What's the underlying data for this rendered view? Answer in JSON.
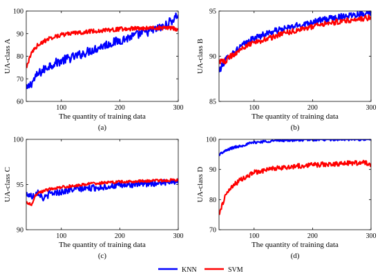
{
  "figure": {
    "legend": {
      "entries": [
        {
          "name": "KNN",
          "color": "#0000ff"
        },
        {
          "name": "SVM",
          "color": "#ff0000"
        }
      ]
    }
  },
  "chart_data": [
    {
      "type": "line",
      "caption": "(a)",
      "xlabel": "The quantity of training data",
      "ylabel": "UA-class A",
      "xlim": [
        40,
        300
      ],
      "ylim": [
        60,
        100
      ],
      "xticks": [
        100,
        200,
        300
      ],
      "yticks": [
        60,
        70,
        80,
        90,
        100
      ],
      "grid": false,
      "series": [
        {
          "name": "KNN",
          "color": "#0000ff",
          "noise": 2.0,
          "x": [
            40,
            60,
            80,
            100,
            125,
            150,
            175,
            200,
            225,
            250,
            275,
            290,
            300
          ],
          "y": [
            65,
            72,
            76,
            78,
            80,
            82.5,
            85,
            87,
            89,
            91,
            93,
            96,
            98.5
          ]
        },
        {
          "name": "SVM",
          "color": "#ff0000",
          "noise": 0.9,
          "x": [
            40,
            50,
            60,
            80,
            100,
            125,
            150,
            200,
            250,
            290,
            300
          ],
          "y": [
            75,
            82,
            85,
            88,
            89.5,
            90.3,
            91,
            92,
            92.5,
            92.5,
            91.5
          ]
        }
      ]
    },
    {
      "type": "line",
      "caption": "(b)",
      "xlabel": "The quantity of training data",
      "ylabel": "UA-class B",
      "xlim": [
        40,
        300
      ],
      "ylim": [
        85,
        95
      ],
      "xticks": [
        100,
        200,
        300
      ],
      "yticks": [
        85,
        90,
        95
      ],
      "grid": false,
      "series": [
        {
          "name": "KNN",
          "color": "#0000ff",
          "noise": 0.35,
          "x": [
            40,
            50,
            60,
            80,
            100,
            125,
            150,
            200,
            250,
            300
          ],
          "y": [
            88.3,
            89.5,
            90.2,
            91.2,
            92.0,
            92.6,
            93.0,
            93.8,
            94.4,
            94.9
          ]
        },
        {
          "name": "SVM",
          "color": "#ff0000",
          "noise": 0.3,
          "x": [
            40,
            50,
            60,
            80,
            100,
            125,
            150,
            200,
            250,
            300
          ],
          "y": [
            89.5,
            89.4,
            90.0,
            90.9,
            91.5,
            92.0,
            92.5,
            93.3,
            93.9,
            94.3
          ]
        }
      ]
    },
    {
      "type": "line",
      "caption": "(c)",
      "xlabel": "The quantity of training data",
      "ylabel": "UA-class C",
      "xlim": [
        40,
        300
      ],
      "ylim": [
        90,
        100
      ],
      "xticks": [
        100,
        200,
        300
      ],
      "yticks": [
        90,
        95,
        100
      ],
      "grid": false,
      "series": [
        {
          "name": "KNN",
          "color": "#0000ff",
          "noise": 0.35,
          "x": [
            40,
            50,
            60,
            70,
            80,
            100,
            125,
            150,
            200,
            250,
            300
          ],
          "y": [
            94.0,
            93.7,
            94.2,
            93.4,
            94.0,
            94.2,
            94.5,
            94.6,
            94.9,
            95.1,
            95.4
          ]
        },
        {
          "name": "SVM",
          "color": "#ff0000",
          "noise": 0.15,
          "x": [
            40,
            50,
            55,
            60,
            70,
            80,
            100,
            125,
            150,
            200,
            250,
            300
          ],
          "y": [
            93.0,
            92.8,
            93.8,
            94.0,
            94.3,
            94.5,
            94.7,
            94.9,
            95.1,
            95.3,
            95.4,
            95.5
          ]
        }
      ]
    },
    {
      "type": "line",
      "caption": "(d)",
      "xlabel": "The quantity of training data",
      "ylabel": "UA-class D",
      "xlim": [
        40,
        300
      ],
      "ylim": [
        70,
        100
      ],
      "xticks": [
        100,
        200,
        300
      ],
      "yticks": [
        70,
        80,
        90,
        100
      ],
      "grid": false,
      "series": [
        {
          "name": "KNN",
          "color": "#0000ff",
          "noise": 0.45,
          "x": [
            40,
            50,
            60,
            80,
            100,
            125,
            150,
            200,
            250,
            300
          ],
          "y": [
            95.0,
            96.0,
            97.0,
            98.0,
            99.0,
            99.4,
            99.7,
            99.9,
            100,
            100
          ]
        },
        {
          "name": "SVM",
          "color": "#ff0000",
          "noise": 0.8,
          "x": [
            40,
            50,
            60,
            80,
            100,
            125,
            150,
            200,
            250,
            290,
            300
          ],
          "y": [
            75,
            81,
            84,
            87,
            89,
            90,
            90.7,
            91.5,
            92,
            92.3,
            91.5
          ]
        }
      ]
    }
  ]
}
